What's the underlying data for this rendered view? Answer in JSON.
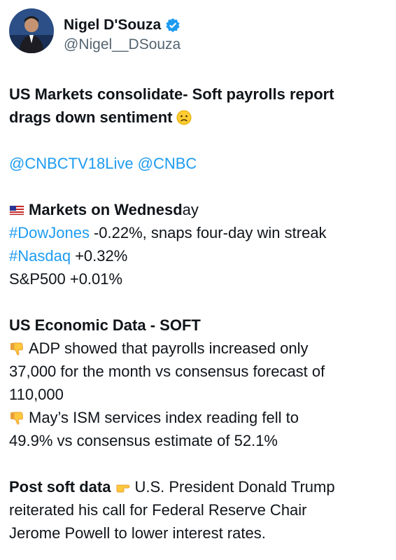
{
  "author": {
    "name": "Nigel D'Souza",
    "handle": "@Nigel__DSouza"
  },
  "post": {
    "headline": [
      "US Markets consolidate- Soft payrolls report",
      "drags down sentiment"
    ],
    "mentions": [
      "@CNBCTV18Live",
      "@CNBC"
    ],
    "markets": {
      "heading_bold": "Markets on Wednesd",
      "heading_rest": "ay",
      "lines": [
        {
          "tag": "#DowJones",
          "text": "-0.22%, snaps four-day win streak"
        },
        {
          "tag": "#Nasdaq",
          "text": "+0.32%"
        },
        {
          "text": "S&P500 +0.01%"
        }
      ]
    },
    "economic": {
      "heading": "US Economic Data - SOFT",
      "items": [
        [
          "ADP showed that payrolls increased only",
          "37,000 for the month vs consensus forecast of",
          "110,000"
        ],
        [
          "May’s ISM services index reading fell to",
          "49.9% vs consensus estimate of 52.1%"
        ]
      ]
    },
    "closing": {
      "lead": "Post soft data",
      "lines": [
        "U.S. President Donald Trump",
        "reiterated his call for Federal Reserve Chair",
        "Jerome Powell to lower interest rates."
      ]
    }
  }
}
